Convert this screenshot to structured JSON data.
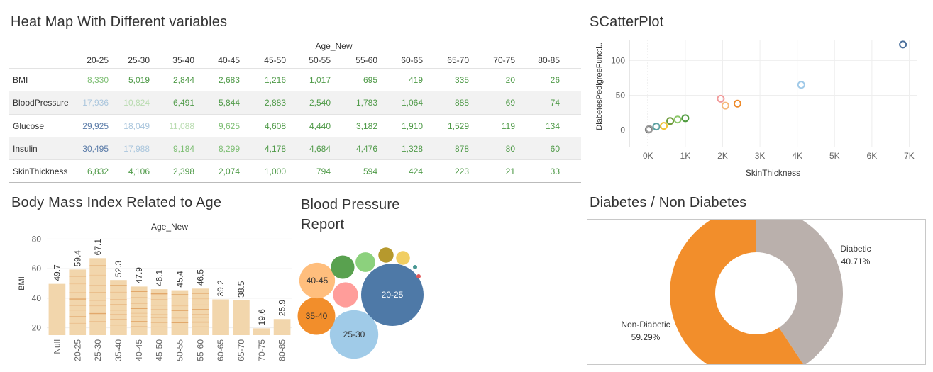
{
  "titles": {
    "heatmap": "Heat Map With Different variables",
    "scatter": "SCatterPlot",
    "bmi": "Body Mass Index Related to Age",
    "bp_line1": "Blood Pressure",
    "bp_line2": "Report",
    "donut": "Diabetes / Non Diabetes"
  },
  "chart_data": [
    {
      "type": "heatmap",
      "title": "Heat Map With Different variables",
      "column_axis_title": "Age_New",
      "columns": [
        "20-25",
        "25-30",
        "35-40",
        "40-45",
        "45-50",
        "50-55",
        "55-60",
        "60-65",
        "65-70",
        "70-75",
        "80-85"
      ],
      "rows": [
        {
          "label": "BMI",
          "values": [
            8330,
            5019,
            2844,
            2683,
            1216,
            1017,
            695,
            419,
            335,
            20,
            26
          ],
          "display": [
            "8,330",
            "5,019",
            "2,844",
            "2,683",
            "1,216",
            "1,017",
            "695",
            "419",
            "335",
            "20",
            "26"
          ]
        },
        {
          "label": "BloodPressure",
          "values": [
            17936,
            10824,
            6491,
            5844,
            2883,
            2540,
            1783,
            1064,
            888,
            69,
            74
          ],
          "display": [
            "17,936",
            "10,824",
            "6,491",
            "5,844",
            "2,883",
            "2,540",
            "1,783",
            "1,064",
            "888",
            "69",
            "74"
          ]
        },
        {
          "label": "Glucose",
          "values": [
            29925,
            18049,
            11088,
            9625,
            4608,
            4440,
            3182,
            1910,
            1529,
            119,
            134
          ],
          "display": [
            "29,925",
            "18,049",
            "11,088",
            "9,625",
            "4,608",
            "4,440",
            "3,182",
            "1,910",
            "1,529",
            "119",
            "134"
          ]
        },
        {
          "label": "Insulin",
          "values": [
            30495,
            17988,
            9184,
            8299,
            4178,
            4684,
            4476,
            1328,
            878,
            80,
            60
          ],
          "display": [
            "30,495",
            "17,988",
            "9,184",
            "8,299",
            "4,178",
            "4,684",
            "4,476",
            "1,328",
            "878",
            "80",
            "60"
          ]
        },
        {
          "label": "SkinThickness",
          "values": [
            6832,
            4106,
            2398,
            2074,
            1000,
            794,
            594,
            424,
            223,
            21,
            33
          ],
          "display": [
            "6,832",
            "4,106",
            "2,398",
            "2,074",
            "1,000",
            "794",
            "594",
            "424",
            "223",
            "21",
            "33"
          ]
        }
      ]
    },
    {
      "type": "scatter",
      "title": "SCatterPlot",
      "xlabel": "SkinThickness",
      "ylabel": "DiabetesPedigreeFuncti..",
      "xlim": [
        -500,
        7200
      ],
      "ylim": [
        -25,
        130
      ],
      "xticks": [
        0,
        1000,
        2000,
        3000,
        4000,
        5000,
        6000,
        7000
      ],
      "xtick_labels": [
        "0K",
        "1K",
        "2K",
        "3K",
        "4K",
        "5K",
        "6K",
        "7K"
      ],
      "yticks": [
        0,
        50,
        100
      ],
      "ytick_labels": [
        "0",
        "50",
        "100"
      ],
      "points": [
        {
          "x": 21,
          "y": 0.8,
          "color": "#6b6b6b"
        },
        {
          "x": 33,
          "y": 1.5,
          "color": "#9c9c9c"
        },
        {
          "x": 223,
          "y": 5,
          "color": "#5aa0a0"
        },
        {
          "x": 424,
          "y": 6,
          "color": "#f1c232"
        },
        {
          "x": 594,
          "y": 13,
          "color": "#6d9b3a"
        },
        {
          "x": 794,
          "y": 15,
          "color": "#8cc76a"
        },
        {
          "x": 1000,
          "y": 17,
          "color": "#4e9a3e"
        },
        {
          "x": 1950,
          "y": 45,
          "color": "#f29a9a"
        },
        {
          "x": 2074,
          "y": 35,
          "color": "#f5b87a"
        },
        {
          "x": 2398,
          "y": 38,
          "color": "#ee8a2a"
        },
        {
          "x": 4106,
          "y": 65,
          "color": "#9fc9e8"
        },
        {
          "x": 6832,
          "y": 123,
          "color": "#4a6f9b"
        }
      ]
    },
    {
      "type": "bar",
      "title": "Body Mass Index Related to Age",
      "column_axis_title": "Age_New",
      "ylabel": "BMI",
      "ylim": [
        15,
        85
      ],
      "yticks": [
        20,
        40,
        60,
        80
      ],
      "categories": [
        "Null",
        "20-25",
        "25-30",
        "35-40",
        "40-45",
        "45-50",
        "50-55",
        "55-60",
        "60-65",
        "65-70",
        "70-75",
        "80-85"
      ],
      "values": [
        49.7,
        59.4,
        67.1,
        52.3,
        47.9,
        46.1,
        45.4,
        46.5,
        39.2,
        38.5,
        19.6,
        25.9
      ],
      "labels": [
        "49.7",
        "59.4",
        "67.1",
        "52.3",
        "47.9",
        "46.1",
        "45.4",
        "46.5",
        "39.2",
        "38.5",
        "19.6",
        "25.9"
      ]
    },
    {
      "type": "packed-bubble",
      "title": "Blood Pressure Report",
      "bubbles": [
        {
          "label": "20-25",
          "value": 17936,
          "color": "#4e79a7",
          "text_color": "#ffffff"
        },
        {
          "label": "25-30",
          "value": 10824,
          "color": "#a0cbe8",
          "text_color": "#333333"
        },
        {
          "label": "35-40",
          "value": 6491,
          "color": "#f28e2b",
          "text_color": "#333333"
        },
        {
          "label": "40-45",
          "value": 5844,
          "color": "#ffbe7d",
          "text_color": "#333333"
        },
        {
          "label": "",
          "value": 2883,
          "color": "#ff9d9a",
          "text_color": "#333333"
        },
        {
          "label": "",
          "value": 2540,
          "color": "#59a14f",
          "text_color": "#333333"
        },
        {
          "label": "",
          "value": 1783,
          "color": "#8cd17d",
          "text_color": "#333333"
        },
        {
          "label": "",
          "value": 1064,
          "color": "#b6992d",
          "text_color": "#333333"
        },
        {
          "label": "",
          "value": 888,
          "color": "#f1ce63",
          "text_color": "#333333"
        },
        {
          "label": "",
          "value": 74,
          "color": "#499894",
          "text_color": "#333333"
        },
        {
          "label": "",
          "value": 69,
          "color": "#e15759",
          "text_color": "#333333"
        }
      ]
    },
    {
      "type": "pie",
      "title": "Diabetes / Non Diabetes",
      "slices": [
        {
          "name": "Diabetic",
          "percent": 40.71,
          "label": "40.71%",
          "color": "#bab0ac"
        },
        {
          "name": "Non-Diabetic",
          "percent": 59.29,
          "label": "59.29%",
          "color": "#f28e2b"
        }
      ]
    }
  ]
}
